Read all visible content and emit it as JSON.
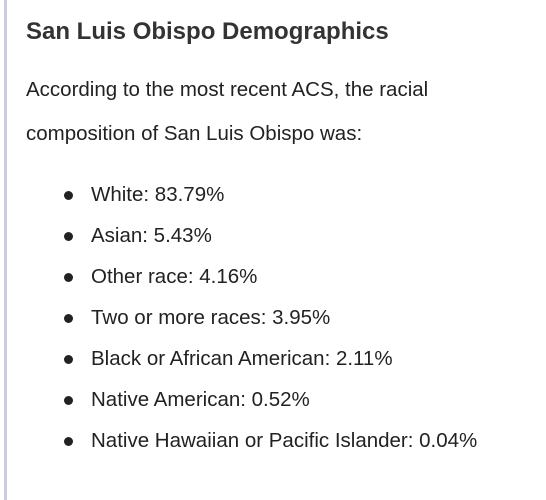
{
  "header": {
    "title": "San Luis Obispo Demographics"
  },
  "paragraph": "According to the most recent ACS, the racial composition of San Luis Obispo was:",
  "list": [
    "White: 83.79%",
    "Asian: 5.43%",
    "Other race: 4.16%",
    "Two or more races: 3.95%",
    "Black or African American: 2.11%",
    "Native American: 0.52%",
    "Native Hawaiian or Pacific Islander: 0.04%"
  ]
}
